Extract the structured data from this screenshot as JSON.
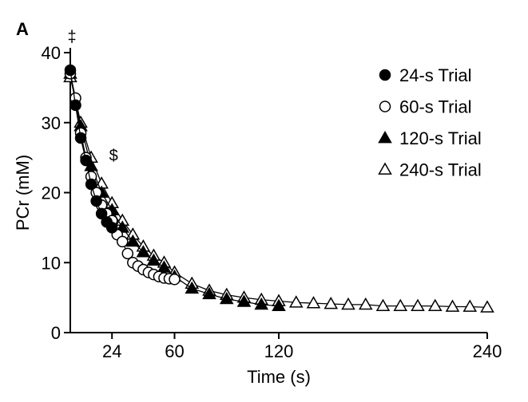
{
  "chart_data": {
    "type": "line",
    "panel_label": "A",
    "xlabel": "Time (s)",
    "ylabel": "PCr (mM)",
    "xlim": [
      0,
      240
    ],
    "ylim": [
      0,
      40
    ],
    "x_ticks": [
      24,
      60,
      120,
      240
    ],
    "y_ticks": [
      0,
      10,
      20,
      30,
      40
    ],
    "grid": false,
    "legend_position": "top-right",
    "annotations": [
      {
        "text": "‡",
        "x": 0,
        "y": 42
      },
      {
        "text": "$",
        "x": 24,
        "y": 25
      }
    ],
    "series": [
      {
        "name": "24-s Trial",
        "marker": "filled-circle",
        "x": [
          0,
          3,
          6,
          9,
          12,
          15,
          18,
          21,
          24
        ],
        "y": [
          37.5,
          32.5,
          27.8,
          24.6,
          21.2,
          18.8,
          17.0,
          15.8,
          15.0
        ]
      },
      {
        "name": "60-s Trial",
        "marker": "open-circle",
        "x": [
          0,
          3,
          6,
          9,
          12,
          15,
          18,
          21,
          24,
          27,
          30,
          33,
          36,
          39,
          42,
          45,
          48,
          51,
          54,
          57,
          60
        ],
        "y": [
          37.0,
          33.5,
          28.5,
          25.0,
          22.3,
          20.0,
          18.2,
          17.0,
          16.0,
          14.0,
          13.0,
          11.3,
          10.0,
          9.5,
          9.0,
          8.6,
          8.3,
          8.0,
          7.8,
          7.7,
          7.6
        ]
      },
      {
        "name": "120-s Trial",
        "marker": "filled-triangle",
        "x": [
          0,
          6,
          12,
          18,
          24,
          30,
          36,
          42,
          48,
          54,
          60,
          70,
          80,
          90,
          100,
          110,
          120
        ],
        "y": [
          37.0,
          29.5,
          23.8,
          20.0,
          17.5,
          15.0,
          13.0,
          11.5,
          10.3,
          9.3,
          8.0,
          6.3,
          5.5,
          4.8,
          4.4,
          4.0,
          3.8
        ]
      },
      {
        "name": "240-s Trial",
        "marker": "open-triangle",
        "x": [
          0,
          6,
          12,
          18,
          24,
          30,
          36,
          42,
          48,
          54,
          60,
          70,
          80,
          90,
          100,
          110,
          120,
          130,
          140,
          150,
          160,
          170,
          180,
          190,
          200,
          210,
          220,
          230,
          240
        ],
        "y": [
          36.5,
          30.0,
          25.0,
          21.3,
          18.5,
          16.0,
          14.0,
          12.3,
          11.0,
          10.0,
          8.6,
          7.0,
          6.0,
          5.4,
          5.0,
          4.7,
          4.5,
          4.3,
          4.2,
          4.1,
          4.0,
          4.0,
          3.8,
          3.8,
          3.8,
          3.8,
          3.7,
          3.7,
          3.6
        ]
      }
    ]
  }
}
